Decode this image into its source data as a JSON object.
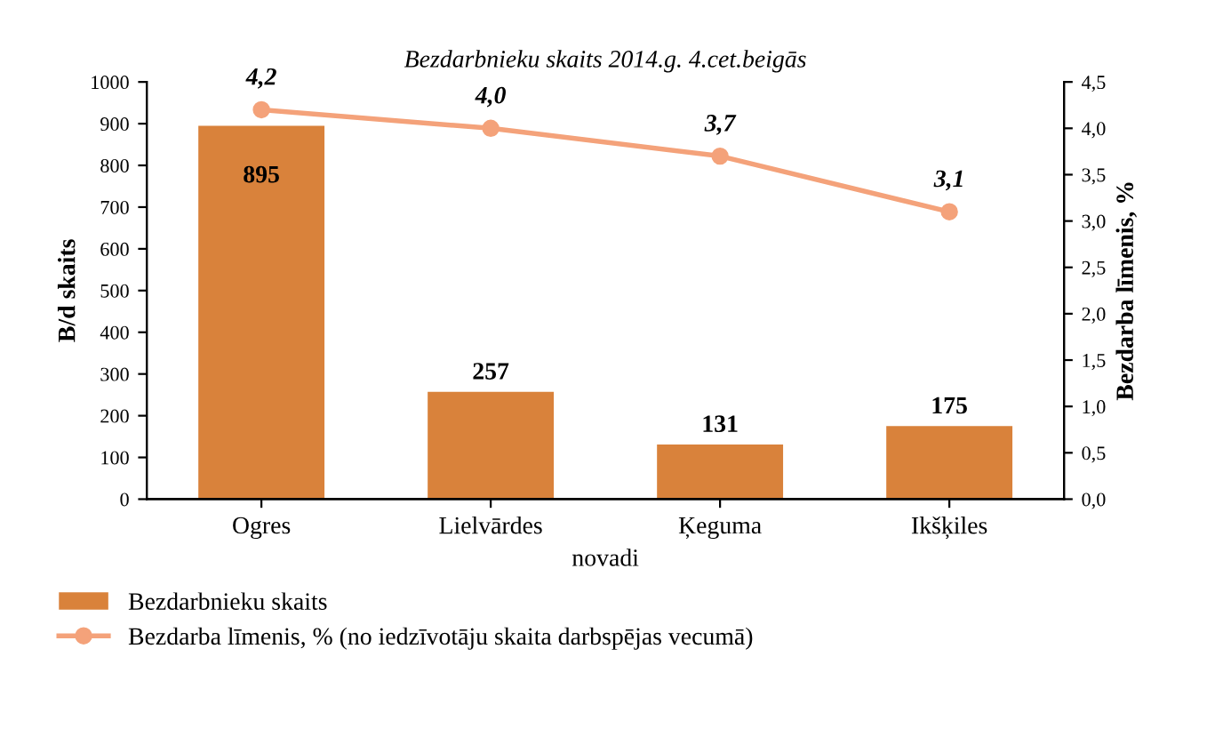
{
  "chart_data": {
    "type": "bar",
    "title": "Bezdarbnieku skaits 2014.g. 4.cet.beigās",
    "xlabel": "novadi",
    "ylabel": "B/d skaits",
    "y2label": "Bezdarba līmenis, %",
    "categories": [
      "Ogres",
      "Lielvārdes",
      "Ķeguma",
      "Ikšķiles"
    ],
    "series": [
      {
        "name": "Bezdarbnieku skaits",
        "color": "#d9823b",
        "values": [
          895,
          257,
          131,
          175
        ],
        "value_labels": [
          "895",
          "257",
          "131",
          "175"
        ]
      },
      {
        "name": "Bezdarba līmenis, % (no iedzīvotāju skaita darbspējas vecumā)",
        "type": "line",
        "axis": "y2",
        "color": "#f4a27a",
        "values": [
          4.2,
          4.0,
          3.7,
          3.1
        ],
        "value_labels": [
          "4,2",
          "4,0",
          "3,7",
          "3,1"
        ],
        "marker": "circle"
      }
    ],
    "ylim": [
      0,
      1000
    ],
    "yticks": [
      0,
      100,
      200,
      300,
      400,
      500,
      600,
      700,
      800,
      900,
      1000
    ],
    "y2lim": [
      0,
      4.5
    ],
    "y2ticks": [
      {
        "value": 0,
        "label": "0,0"
      },
      {
        "value": 0.5,
        "label": "0,5"
      },
      {
        "value": 1,
        "label": "1,0"
      },
      {
        "value": 1.5,
        "label": "1,5"
      },
      {
        "value": 2,
        "label": "2,0"
      },
      {
        "value": 2.5,
        "label": "2,5"
      },
      {
        "value": 3,
        "label": "3,0"
      },
      {
        "value": 3.5,
        "label": "3,5"
      },
      {
        "value": 4,
        "label": "4,0"
      },
      {
        "value": 4.5,
        "label": "4,5"
      }
    ],
    "grid": false,
    "legend": "bottom left"
  }
}
